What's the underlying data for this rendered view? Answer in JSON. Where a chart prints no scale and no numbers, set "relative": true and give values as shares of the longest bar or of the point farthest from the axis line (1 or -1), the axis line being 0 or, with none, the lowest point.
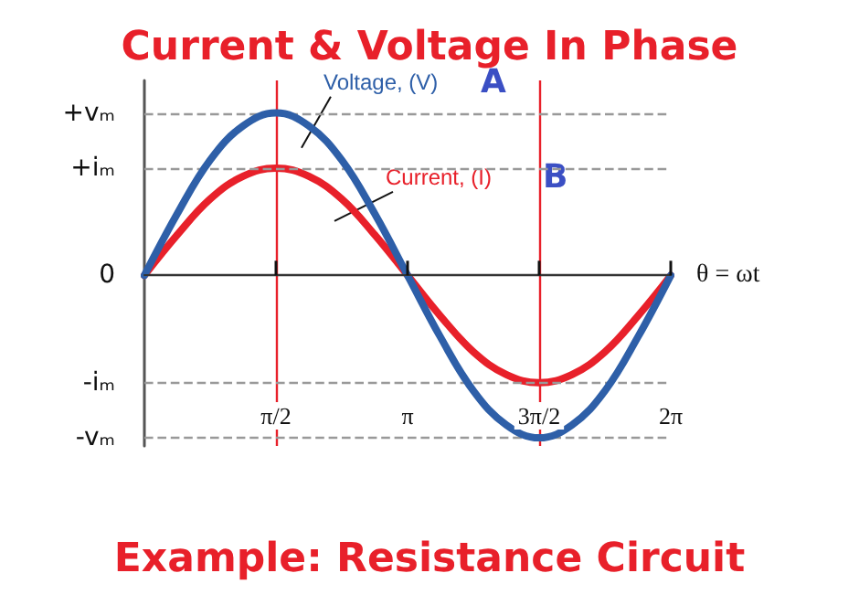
{
  "chart_data": {
    "type": "line",
    "title": "Current & Voltage In Phase",
    "xlabel": "θ = ωt",
    "relative": true,
    "x": [
      0,
      0.393,
      0.785,
      1.178,
      1.571,
      1.963,
      2.356,
      2.749,
      3.142,
      3.534,
      3.927,
      4.32,
      4.712,
      5.105,
      5.498,
      5.89,
      6.283
    ],
    "series": [
      {
        "name": "Voltage, (V)",
        "color": "#2e5fa8",
        "values": [
          0,
          0.38,
          0.71,
          0.92,
          1,
          0.92,
          0.71,
          0.38,
          0,
          -0.38,
          -0.71,
          -0.92,
          -1,
          -0.92,
          -0.71,
          -0.38,
          0
        ]
      },
      {
        "name": "Current, (I)",
        "color": "#e8202a",
        "values": [
          0,
          0.25,
          0.47,
          0.61,
          0.66,
          0.61,
          0.47,
          0.25,
          0,
          -0.25,
          -0.47,
          -0.61,
          -0.66,
          -0.61,
          -0.47,
          -0.25,
          0
        ]
      }
    ],
    "xlim": [
      0,
      6.283
    ],
    "xticks": [
      {
        "value": 1.571,
        "label": "π/2"
      },
      {
        "value": 3.142,
        "label": "π"
      },
      {
        "value": 4.712,
        "label": "3π/2"
      },
      {
        "value": 6.283,
        "label": "2π"
      }
    ],
    "ref_lines": [
      {
        "axis": "x",
        "value": 1.571,
        "color": "#e8202a"
      },
      {
        "axis": "x",
        "value": 4.712,
        "color": "#e8202a"
      },
      {
        "axis": "y",
        "value": 1,
        "label": "+vₘ",
        "color": "#999999",
        "line_style": "dashed"
      },
      {
        "axis": "y",
        "value": 0.66,
        "label": "+iₘ",
        "color": "#999999",
        "line_style": "dashed"
      },
      {
        "axis": "y",
        "value": 0,
        "label": "0",
        "color": "#333333",
        "line_style": "solid"
      },
      {
        "axis": "y",
        "value": -0.66,
        "label": "-iₘ",
        "color": "#999999",
        "line_style": "dashed"
      },
      {
        "axis": "y",
        "value": -1,
        "label": "-vₘ",
        "color": "#999999",
        "line_style": "dashed"
      }
    ],
    "annotations": [
      "Example: Resistance Circuit",
      "A",
      "B"
    ],
    "legend": false,
    "marker": "none",
    "line_style": "solid"
  }
}
